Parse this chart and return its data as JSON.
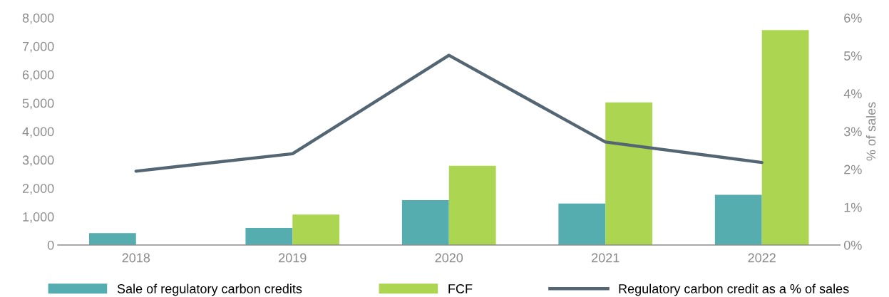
{
  "chart_data": {
    "type": "bar",
    "categories": [
      "2018",
      "2019",
      "2020",
      "2021",
      "2022"
    ],
    "series": [
      {
        "name": "Sale of regulatory carbon credits",
        "color": "#56adb0",
        "values": [
          420,
          600,
          1580,
          1460,
          1770
        ]
      },
      {
        "name": "FCF",
        "color": "#acd652",
        "values": [
          null,
          1070,
          2790,
          5020,
          7570
        ]
      },
      {
        "name": "Regulatory carbon credit as a % of sales",
        "type": "line",
        "axis": "y2",
        "color": "#546673",
        "values": [
          1.95,
          2.41,
          5.01,
          2.72,
          2.18
        ]
      }
    ],
    "ylim": [
      0,
      8000
    ],
    "yticks": [
      {
        "value": 0,
        "label": "0"
      },
      {
        "value": 1000,
        "label": "1,000"
      },
      {
        "value": 2000,
        "label": "2,000"
      },
      {
        "value": 3000,
        "label": "3,000"
      },
      {
        "value": 4000,
        "label": "4,000"
      },
      {
        "value": 5000,
        "label": "5,000"
      },
      {
        "value": 6000,
        "label": "6,000"
      },
      {
        "value": 7000,
        "label": "7,000"
      },
      {
        "value": 8000,
        "label": "8,000"
      }
    ],
    "y2lim": [
      0,
      6
    ],
    "y2ticks": [
      {
        "value": 0,
        "label": "0%"
      },
      {
        "value": 1,
        "label": "1%"
      },
      {
        "value": 2,
        "label": "2%"
      },
      {
        "value": 3,
        "label": "3%"
      },
      {
        "value": 4,
        "label": "4%"
      },
      {
        "value": 5,
        "label": "5%"
      },
      {
        "value": 6,
        "label": "6%"
      }
    ],
    "y2label": "% of sales",
    "legend": "bottom",
    "grid": false
  }
}
